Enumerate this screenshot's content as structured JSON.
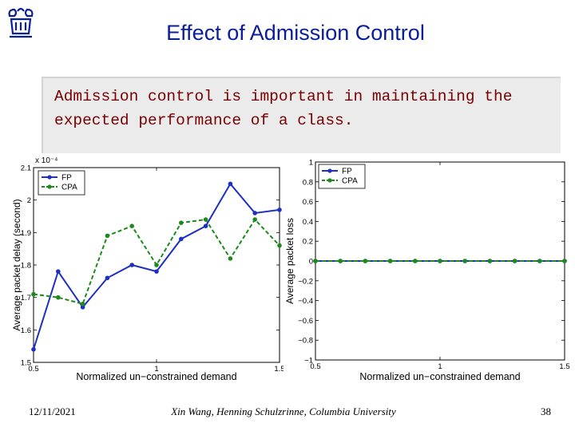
{
  "slide": {
    "title": "Effect of Admission Control",
    "body_line1": "Admission control is important in maintaining the",
    "body_line2": "expected performance of a class.",
    "date": "12/11/2021",
    "author": "Xin Wang, Henning Schulzrinne, Columbia University",
    "page": "38"
  },
  "colors": {
    "title": "#0a1e9a",
    "body_text": "#7a0000",
    "fp": "#1f2fc4",
    "cpa": "#1e8a1e",
    "panel": "#ebebeb"
  },
  "icons": {
    "logo": "columbia-crown-logo"
  },
  "chart_data": [
    {
      "type": "line",
      "title": "",
      "xlabel": "Normalized un−constrained demand",
      "ylabel": "Average packet delay (second)",
      "exponent_label": "x 10⁻⁴",
      "xlim": [
        0.5,
        1.5
      ],
      "ylim": [
        1.5,
        2.1
      ],
      "xticks": [
        0.5,
        1,
        1.5
      ],
      "xtick_labels": [
        "0.5",
        "1",
        "1.5"
      ],
      "yticks": [
        1.5,
        1.6,
        1.7,
        1.8,
        1.9,
        2.0,
        2.1
      ],
      "ytick_labels": [
        "1.5",
        "1.6",
        "1.7",
        "1.8",
        "1.9",
        "2",
        "2.1"
      ],
      "legend_position": "top-left",
      "x": [
        0.5,
        0.6,
        0.7,
        0.8,
        0.9,
        1.0,
        1.1,
        1.2,
        1.3,
        1.4,
        1.5
      ],
      "series": [
        {
          "name": "FP",
          "values": [
            1.54,
            1.78,
            1.67,
            1.76,
            1.8,
            1.78,
            1.88,
            1.92,
            2.05,
            1.96,
            1.97
          ]
        },
        {
          "name": "CPA",
          "values": [
            1.71,
            1.7,
            1.68,
            1.89,
            1.92,
            1.8,
            1.93,
            1.94,
            1.82,
            1.94,
            1.86
          ]
        }
      ]
    },
    {
      "type": "line",
      "title": "",
      "xlabel": "Normalized un−constrained demand",
      "ylabel": "Average packet loss",
      "xlim": [
        0.5,
        1.5
      ],
      "ylim": [
        -1,
        1
      ],
      "xticks": [
        0.5,
        1,
        1.5
      ],
      "xtick_labels": [
        "0.5",
        "1",
        "1.5"
      ],
      "yticks": [
        -1,
        -0.8,
        -0.6,
        -0.4,
        -0.2,
        0,
        0.2,
        0.4,
        0.6,
        0.8,
        1
      ],
      "ytick_labels": [
        "−1",
        "−0.8",
        "−0.6",
        "−0.4",
        "−0.2",
        "0",
        "0.2",
        "0.4",
        "0.6",
        "0.8",
        "1"
      ],
      "legend_position": "top-left",
      "x": [
        0.5,
        0.6,
        0.7,
        0.8,
        0.9,
        1.0,
        1.1,
        1.2,
        1.3,
        1.4,
        1.5
      ],
      "series": [
        {
          "name": "FP",
          "values": [
            0,
            0,
            0,
            0,
            0,
            0,
            0,
            0,
            0,
            0,
            0
          ]
        },
        {
          "name": "CPA",
          "values": [
            0,
            0,
            0,
            0,
            0,
            0,
            0,
            0,
            0,
            0,
            0
          ]
        }
      ]
    }
  ]
}
